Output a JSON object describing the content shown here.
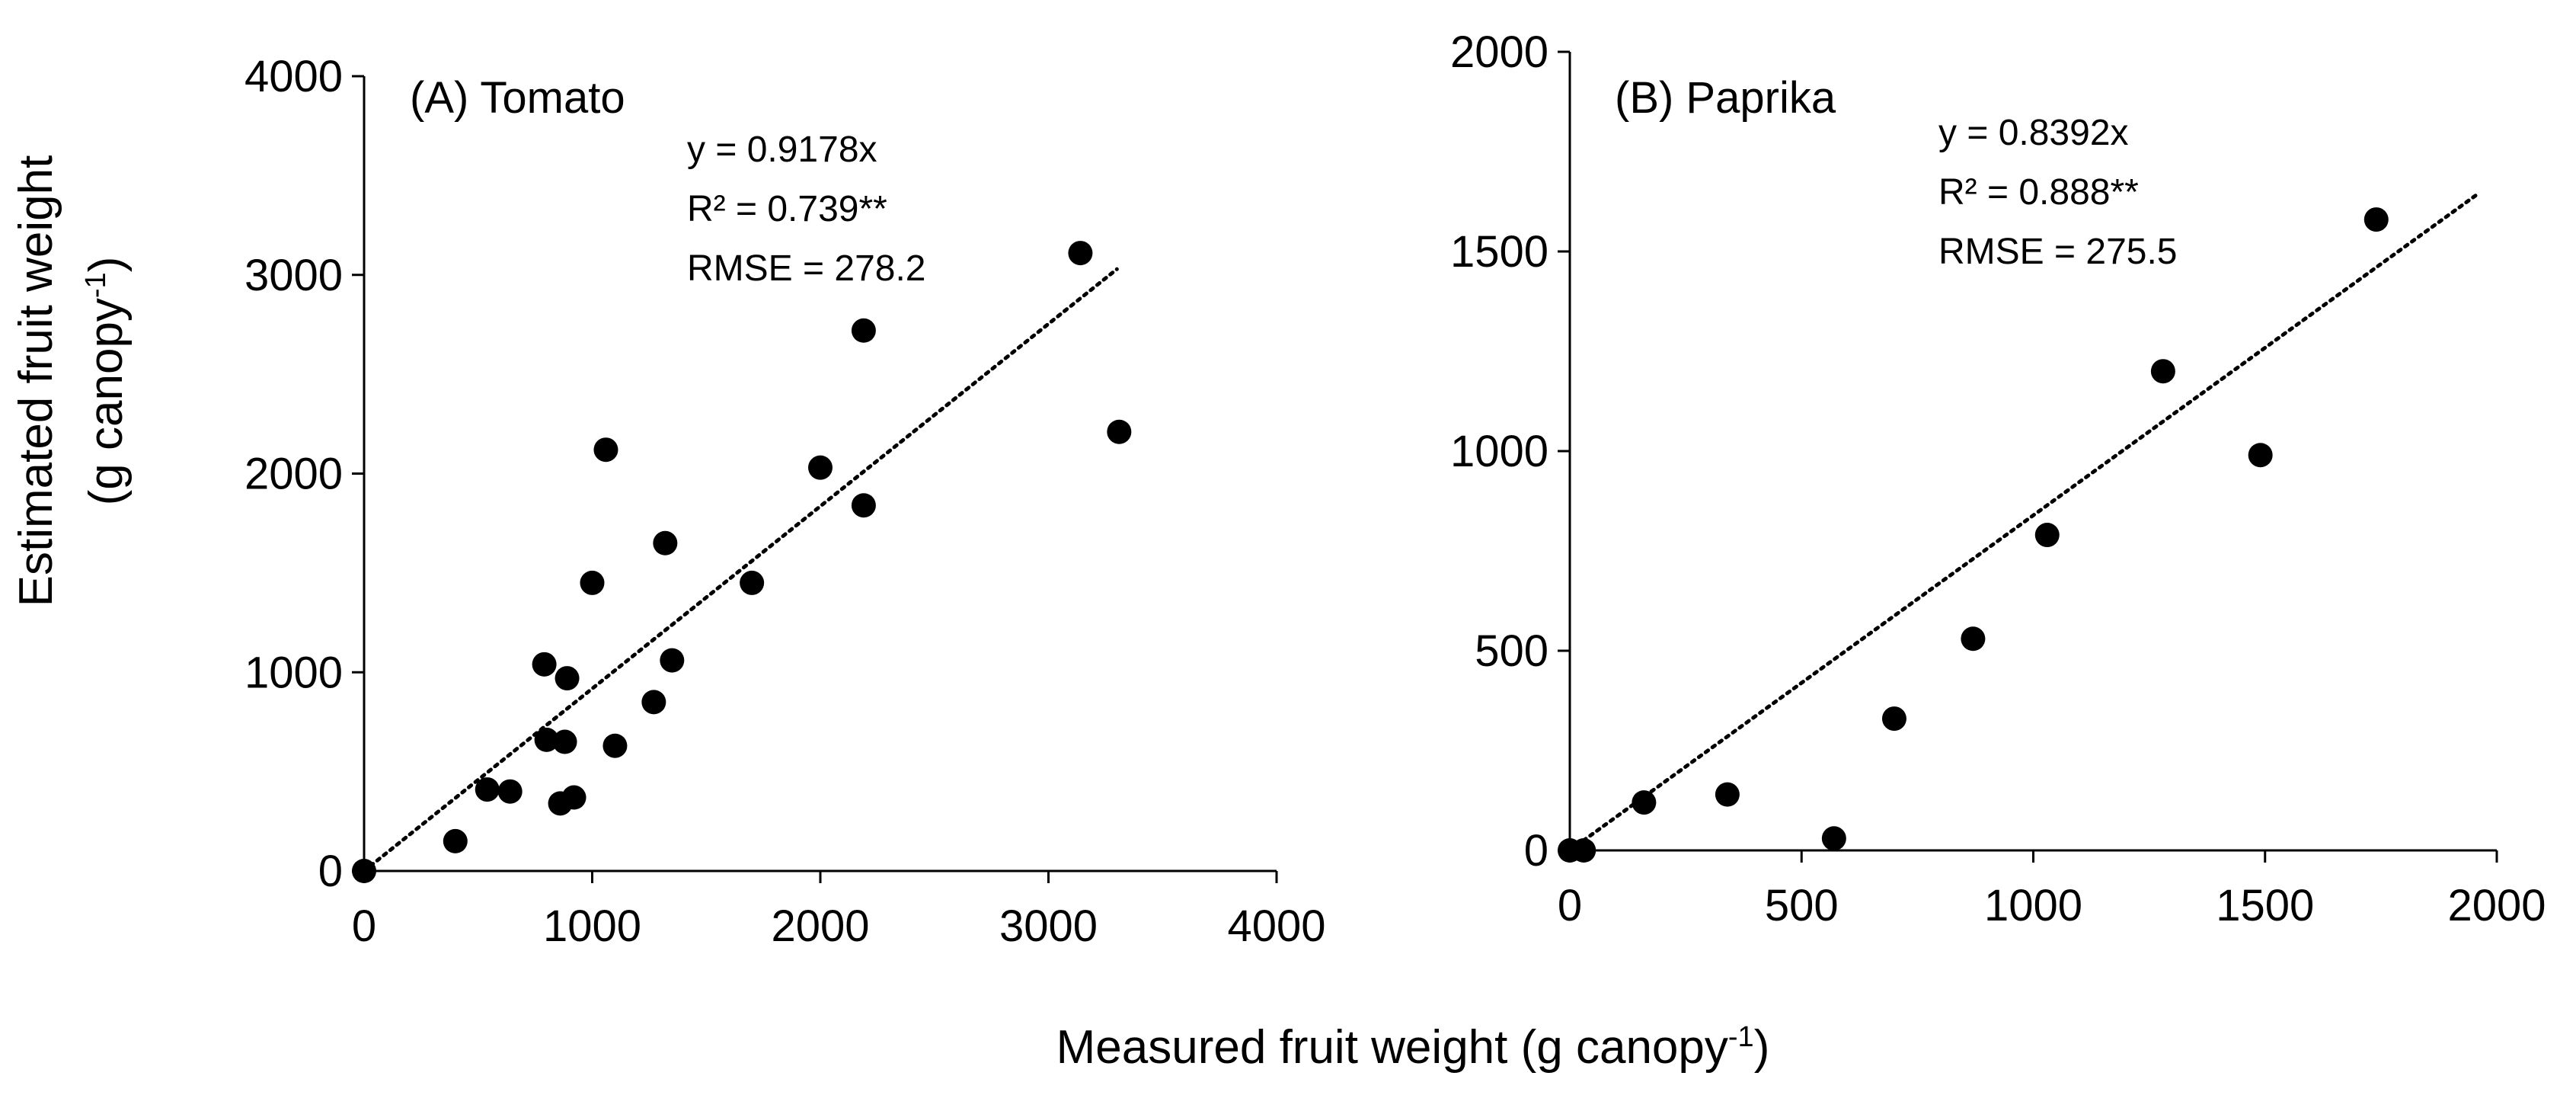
{
  "y_axis_title": {
    "line1": "Estimated fruit weight",
    "line2_prefix": "(g canopy",
    "line2_sup": "-1",
    "line2_suffix": ")"
  },
  "x_axis_title": {
    "prefix": "Measured fruit weight (g canopy",
    "sup": "-1",
    "suffix": ")"
  },
  "colors": {
    "marker": "#000000",
    "axis": "#000000",
    "trendline": "#000000"
  },
  "chart_data": [
    {
      "type": "scatter",
      "title": "(A) Tomato",
      "xlim": [
        0,
        4000
      ],
      "ylim": [
        0,
        4000
      ],
      "xticks": [
        0,
        1000,
        2000,
        3000,
        4000
      ],
      "yticks": [
        0,
        1000,
        2000,
        3000,
        4000
      ],
      "xtick_labels": [
        "0",
        "1000",
        "2000",
        "3000",
        "4000"
      ],
      "ytick_labels": [
        "0",
        "1000",
        "2000",
        "3000",
        "4000"
      ],
      "points": [
        [
          0,
          0
        ],
        [
          400,
          150
        ],
        [
          540,
          410
        ],
        [
          640,
          400
        ],
        [
          790,
          1040
        ],
        [
          800,
          660
        ],
        [
          860,
          340
        ],
        [
          880,
          650
        ],
        [
          890,
          970
        ],
        [
          920,
          370
        ],
        [
          1000,
          1450
        ],
        [
          1060,
          2120
        ],
        [
          1100,
          630
        ],
        [
          1270,
          850
        ],
        [
          1320,
          1650
        ],
        [
          1350,
          1060
        ],
        [
          1700,
          1450
        ],
        [
          2000,
          2030
        ],
        [
          2190,
          2720
        ],
        [
          2190,
          1840
        ],
        [
          3140,
          3110
        ],
        [
          3310,
          2210
        ]
      ],
      "trendline": {
        "slope": 0.9178,
        "x_range": [
          0,
          3300
        ]
      },
      "annotations": [
        "y = 0.9178x",
        "R² = 0.739**",
        "RMSE = 278.2"
      ]
    },
    {
      "type": "scatter",
      "title": "(B) Paprika",
      "xlim": [
        0,
        2000
      ],
      "ylim": [
        0,
        2000
      ],
      "xticks": [
        0,
        500,
        1000,
        1500,
        2000
      ],
      "yticks": [
        0,
        500,
        1000,
        1500,
        2000
      ],
      "xtick_labels": [
        "0",
        "500",
        "1000",
        "1500",
        "2000"
      ],
      "ytick_labels": [
        "0",
        "500",
        "1000",
        "1500",
        "2000"
      ],
      "points": [
        [
          0,
          0
        ],
        [
          30,
          0
        ],
        [
          160,
          120
        ],
        [
          340,
          140
        ],
        [
          570,
          30
        ],
        [
          700,
          330
        ],
        [
          870,
          530
        ],
        [
          1030,
          790
        ],
        [
          1280,
          1200
        ],
        [
          1490,
          990
        ],
        [
          1740,
          1580
        ]
      ],
      "trendline": {
        "slope": 0.8392,
        "x_range": [
          0,
          1960
        ]
      },
      "annotations": [
        "y = 0.8392x",
        "R² = 0.888**",
        "RMSE = 275.5"
      ]
    }
  ]
}
